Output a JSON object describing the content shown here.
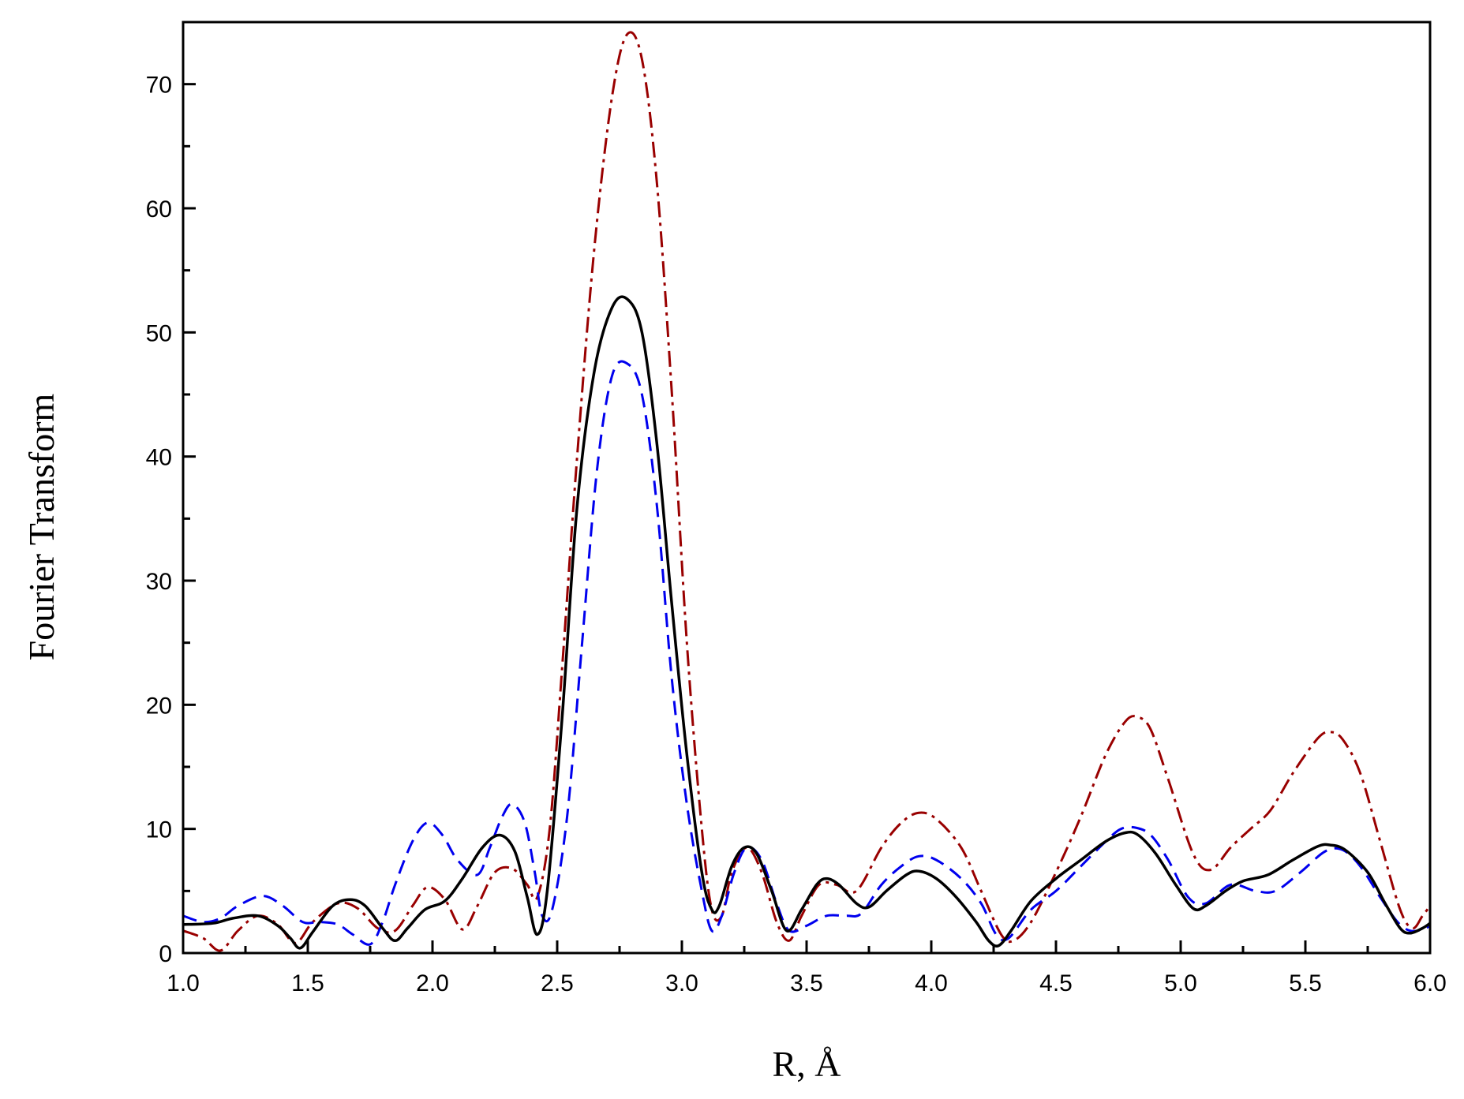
{
  "chart_data": {
    "type": "line",
    "xlabel": "R, Å",
    "ylabel": "Fourier Transform",
    "xlim": [
      1.0,
      6.0
    ],
    "ylim": [
      0,
      75
    ],
    "xticks": [
      "1.0",
      "1.5",
      "2.0",
      "2.5",
      "3.0",
      "3.5",
      "4.0",
      "4.5",
      "5.0",
      "5.5",
      "6.0"
    ],
    "yticks": [
      "0",
      "10",
      "20",
      "30",
      "40",
      "50",
      "60",
      "70"
    ],
    "grid": false,
    "series": [
      {
        "style": "dash-dot",
        "color": "#990000",
        "points": [
          [
            1.0,
            1.8
          ],
          [
            1.08,
            1.2
          ],
          [
            1.15,
            0.2
          ],
          [
            1.22,
            1.8
          ],
          [
            1.3,
            3.0
          ],
          [
            1.38,
            2.3
          ],
          [
            1.45,
            0.8
          ],
          [
            1.52,
            2.5
          ],
          [
            1.62,
            4.0
          ],
          [
            1.7,
            3.6
          ],
          [
            1.78,
            2.0
          ],
          [
            1.85,
            1.8
          ],
          [
            1.92,
            3.8
          ],
          [
            1.98,
            5.3
          ],
          [
            2.05,
            4.3
          ],
          [
            2.12,
            1.9
          ],
          [
            2.18,
            3.8
          ],
          [
            2.25,
            6.5
          ],
          [
            2.32,
            6.8
          ],
          [
            2.38,
            5.5
          ],
          [
            2.42,
            4.5
          ],
          [
            2.47,
            10.0
          ],
          [
            2.52,
            23.0
          ],
          [
            2.58,
            40.0
          ],
          [
            2.65,
            57.0
          ],
          [
            2.72,
            69.0
          ],
          [
            2.78,
            74.0
          ],
          [
            2.84,
            72.0
          ],
          [
            2.9,
            62.0
          ],
          [
            2.96,
            45.0
          ],
          [
            3.02,
            25.0
          ],
          [
            3.08,
            10.0
          ],
          [
            3.12,
            3.5
          ],
          [
            3.16,
            3.0
          ],
          [
            3.2,
            6.5
          ],
          [
            3.26,
            8.5
          ],
          [
            3.32,
            6.5
          ],
          [
            3.38,
            2.5
          ],
          [
            3.43,
            1.0
          ],
          [
            3.48,
            3.0
          ],
          [
            3.55,
            5.5
          ],
          [
            3.62,
            5.5
          ],
          [
            3.7,
            5.0
          ],
          [
            3.8,
            8.5
          ],
          [
            3.88,
            10.5
          ],
          [
            3.95,
            11.3
          ],
          [
            4.02,
            10.8
          ],
          [
            4.12,
            8.5
          ],
          [
            4.2,
            5.0
          ],
          [
            4.28,
            1.5
          ],
          [
            4.33,
            1.0
          ],
          [
            4.4,
            2.5
          ],
          [
            4.5,
            6.5
          ],
          [
            4.6,
            11.0
          ],
          [
            4.7,
            16.0
          ],
          [
            4.78,
            18.7
          ],
          [
            4.83,
            19.0
          ],
          [
            4.88,
            18.0
          ],
          [
            4.95,
            14.0
          ],
          [
            5.05,
            8.0
          ],
          [
            5.12,
            6.7
          ],
          [
            5.2,
            8.5
          ],
          [
            5.28,
            10.0
          ],
          [
            5.36,
            11.5
          ],
          [
            5.45,
            14.5
          ],
          [
            5.55,
            17.3
          ],
          [
            5.6,
            17.8
          ],
          [
            5.65,
            17.2
          ],
          [
            5.72,
            14.5
          ],
          [
            5.8,
            9.0
          ],
          [
            5.88,
            3.5
          ],
          [
            5.93,
            2.0
          ],
          [
            5.97,
            3.0
          ],
          [
            6.0,
            3.8
          ]
        ]
      },
      {
        "style": "dashed",
        "color": "#0000ee",
        "points": [
          [
            1.0,
            3.0
          ],
          [
            1.08,
            2.5
          ],
          [
            1.15,
            2.8
          ],
          [
            1.22,
            3.8
          ],
          [
            1.32,
            4.6
          ],
          [
            1.4,
            3.8
          ],
          [
            1.48,
            2.5
          ],
          [
            1.55,
            2.5
          ],
          [
            1.62,
            2.3
          ],
          [
            1.68,
            1.5
          ],
          [
            1.75,
            0.7
          ],
          [
            1.8,
            2.5
          ],
          [
            1.85,
            5.5
          ],
          [
            1.92,
            9.0
          ],
          [
            1.98,
            10.5
          ],
          [
            2.04,
            9.5
          ],
          [
            2.1,
            7.5
          ],
          [
            2.18,
            6.3
          ],
          [
            2.23,
            8.5
          ],
          [
            2.28,
            11.0
          ],
          [
            2.32,
            12.0
          ],
          [
            2.37,
            10.5
          ],
          [
            2.41,
            6.5
          ],
          [
            2.44,
            3.0
          ],
          [
            2.48,
            3.5
          ],
          [
            2.54,
            11.0
          ],
          [
            2.6,
            25.0
          ],
          [
            2.66,
            39.0
          ],
          [
            2.72,
            46.5
          ],
          [
            2.78,
            47.5
          ],
          [
            2.84,
            45.0
          ],
          [
            2.9,
            36.0
          ],
          [
            2.96,
            22.0
          ],
          [
            3.02,
            12.0
          ],
          [
            3.08,
            5.0
          ],
          [
            3.12,
            1.8
          ],
          [
            3.16,
            3.0
          ],
          [
            3.21,
            6.5
          ],
          [
            3.26,
            8.5
          ],
          [
            3.32,
            7.5
          ],
          [
            3.38,
            4.0
          ],
          [
            3.43,
            1.8
          ],
          [
            3.5,
            2.2
          ],
          [
            3.58,
            3.0
          ],
          [
            3.66,
            3.0
          ],
          [
            3.72,
            3.2
          ],
          [
            3.8,
            5.5
          ],
          [
            3.88,
            7.0
          ],
          [
            3.95,
            7.8
          ],
          [
            4.02,
            7.5
          ],
          [
            4.12,
            6.0
          ],
          [
            4.2,
            4.0
          ],
          [
            4.26,
            1.5
          ],
          [
            4.31,
            1.2
          ],
          [
            4.4,
            3.5
          ],
          [
            4.5,
            5.0
          ],
          [
            4.6,
            7.0
          ],
          [
            4.7,
            9.0
          ],
          [
            4.76,
            10.0
          ],
          [
            4.82,
            10.1
          ],
          [
            4.88,
            9.5
          ],
          [
            4.95,
            7.5
          ],
          [
            5.03,
            4.5
          ],
          [
            5.1,
            4.0
          ],
          [
            5.2,
            5.5
          ],
          [
            5.3,
            5.0
          ],
          [
            5.38,
            5.0
          ],
          [
            5.48,
            6.5
          ],
          [
            5.58,
            8.2
          ],
          [
            5.65,
            8.3
          ],
          [
            5.72,
            7.0
          ],
          [
            5.8,
            4.5
          ],
          [
            5.87,
            2.5
          ],
          [
            5.92,
            1.8
          ],
          [
            5.97,
            1.9
          ],
          [
            6.0,
            2.2
          ]
        ]
      },
      {
        "style": "solid",
        "color": "#000000",
        "points": [
          [
            1.0,
            2.3
          ],
          [
            1.12,
            2.4
          ],
          [
            1.2,
            2.8
          ],
          [
            1.3,
            3.0
          ],
          [
            1.38,
            2.2
          ],
          [
            1.43,
            1.2
          ],
          [
            1.47,
            0.4
          ],
          [
            1.52,
            1.7
          ],
          [
            1.6,
            3.8
          ],
          [
            1.67,
            4.3
          ],
          [
            1.73,
            3.8
          ],
          [
            1.8,
            2.0
          ],
          [
            1.85,
            1.0
          ],
          [
            1.9,
            2.0
          ],
          [
            1.97,
            3.5
          ],
          [
            2.05,
            4.2
          ],
          [
            2.12,
            6.0
          ],
          [
            2.2,
            8.5
          ],
          [
            2.27,
            9.5
          ],
          [
            2.33,
            8.2
          ],
          [
            2.38,
            4.5
          ],
          [
            2.42,
            1.5
          ],
          [
            2.46,
            5.0
          ],
          [
            2.52,
            19.0
          ],
          [
            2.58,
            36.0
          ],
          [
            2.65,
            47.0
          ],
          [
            2.72,
            52.0
          ],
          [
            2.78,
            52.7
          ],
          [
            2.84,
            50.0
          ],
          [
            2.9,
            41.0
          ],
          [
            2.96,
            28.0
          ],
          [
            3.02,
            16.0
          ],
          [
            3.08,
            6.5
          ],
          [
            3.12,
            3.5
          ],
          [
            3.15,
            3.8
          ],
          [
            3.2,
            7.0
          ],
          [
            3.25,
            8.5
          ],
          [
            3.3,
            8.0
          ],
          [
            3.36,
            5.0
          ],
          [
            3.42,
            1.8
          ],
          [
            3.48,
            3.5
          ],
          [
            3.54,
            5.5
          ],
          [
            3.58,
            6.0
          ],
          [
            3.63,
            5.5
          ],
          [
            3.7,
            4.0
          ],
          [
            3.75,
            3.7
          ],
          [
            3.82,
            5.0
          ],
          [
            3.9,
            6.3
          ],
          [
            3.95,
            6.6
          ],
          [
            4.02,
            6.0
          ],
          [
            4.1,
            4.5
          ],
          [
            4.18,
            2.5
          ],
          [
            4.23,
            1.0
          ],
          [
            4.27,
            0.6
          ],
          [
            4.32,
            1.8
          ],
          [
            4.4,
            4.2
          ],
          [
            4.5,
            6.0
          ],
          [
            4.6,
            7.5
          ],
          [
            4.7,
            9.0
          ],
          [
            4.78,
            9.7
          ],
          [
            4.83,
            9.5
          ],
          [
            4.9,
            8.0
          ],
          [
            4.98,
            5.5
          ],
          [
            5.05,
            3.6
          ],
          [
            5.1,
            3.8
          ],
          [
            5.18,
            5.0
          ],
          [
            5.25,
            5.8
          ],
          [
            5.35,
            6.3
          ],
          [
            5.45,
            7.5
          ],
          [
            5.55,
            8.6
          ],
          [
            5.6,
            8.7
          ],
          [
            5.66,
            8.3
          ],
          [
            5.75,
            6.5
          ],
          [
            5.82,
            4.0
          ],
          [
            5.88,
            2.0
          ],
          [
            5.92,
            1.6
          ],
          [
            5.97,
            2.0
          ],
          [
            6.0,
            2.4
          ]
        ]
      }
    ]
  }
}
